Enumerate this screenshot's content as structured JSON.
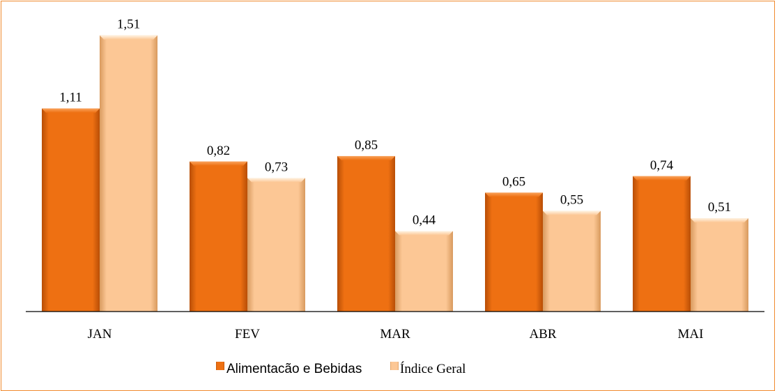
{
  "chart_data": {
    "type": "bar",
    "categories": [
      "JAN",
      "FEV",
      "MAR",
      "ABR",
      "MAI"
    ],
    "series": [
      {
        "name": "Alimentacão e Bebidas",
        "values": [
          1.11,
          0.82,
          0.85,
          0.65,
          0.74
        ],
        "labels": [
          "1,11",
          "0,82",
          "0,85",
          "0,65",
          "0,74"
        ],
        "color": "#ee7012"
      },
      {
        "name": "Índice Geral",
        "values": [
          1.51,
          0.73,
          0.44,
          0.55,
          0.51
        ],
        "labels": [
          "1,51",
          "0,73",
          "0,44",
          "0,55",
          "0,51"
        ],
        "color": "#fcc795"
      }
    ],
    "ylim": [
      0,
      1.65
    ],
    "legend_position": "bottom",
    "grid": false,
    "title": "",
    "xlabel": "",
    "ylabel": ""
  },
  "colors": {
    "border": "#f08a2e",
    "series1": "#ee7012",
    "series2": "#fcc795"
  }
}
